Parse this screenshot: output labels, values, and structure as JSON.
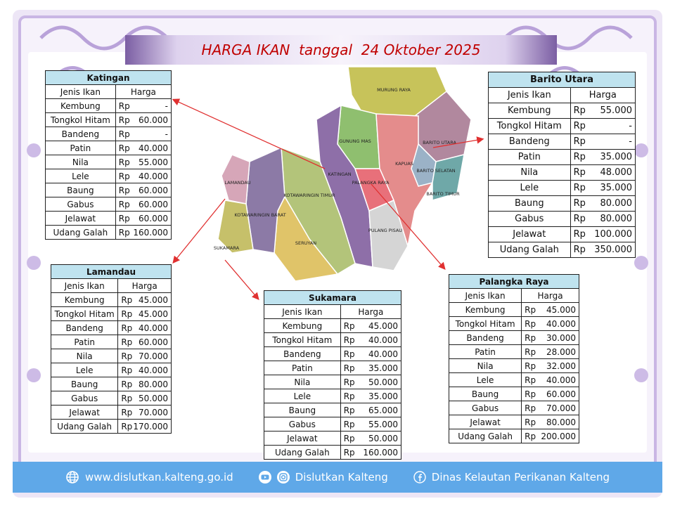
{
  "title": "HARGA IKAN  tanggal  24 Oktober 2025",
  "columns": {
    "fish": "Jenis Ikan",
    "price": "Harga"
  },
  "currency": "Rp",
  "colors": {
    "title": "#c00000",
    "region_header": "#bfe3ef",
    "footer": "#5fa8e8",
    "frame": "#c9b6e4",
    "arrow": "#e03030"
  },
  "map": {
    "labels": {
      "murung_raya": "MURUNG RAYA",
      "gunung_mas": "GUNUNG MAS",
      "barito_utara": "BARITO UTARA",
      "barito_selatan": "BARITO SELATAN",
      "barito_timur": "BARITO TIMUR",
      "kapuas": "KAPUAS",
      "katingan": "KATINGAN",
      "palangka_raya": "PALANGKA RAYA",
      "pulang_pisau": "PULANG PISAU",
      "kotawaringin_timur": "KOTAWARINGIN TIMUR",
      "kotawaringin_barat": "KOTAWARINGIN BARAT",
      "seruyan": "SERUYAN",
      "lamandau": "LAMANDAU",
      "sukamara": "SUKAMARA"
    }
  },
  "tables": {
    "katingan": {
      "region": "Katingan",
      "rows": [
        {
          "fish": "Kembung",
          "price": "-"
        },
        {
          "fish": "Tongkol Hitam",
          "price": "60.000"
        },
        {
          "fish": "Bandeng",
          "price": "-"
        },
        {
          "fish": "Patin",
          "price": "40.000"
        },
        {
          "fish": "Nila",
          "price": "55.000"
        },
        {
          "fish": "Lele",
          "price": "40.000"
        },
        {
          "fish": "Baung",
          "price": "60.000"
        },
        {
          "fish": "Gabus",
          "price": "60.000"
        },
        {
          "fish": "Jelawat",
          "price": "60.000"
        },
        {
          "fish": "Udang Galah",
          "price": "160.000"
        }
      ]
    },
    "barito_utara": {
      "region": "Barito Utara",
      "rows": [
        {
          "fish": "Kembung",
          "price": "55.000"
        },
        {
          "fish": "Tongkol Hitam",
          "price": "-"
        },
        {
          "fish": "Bandeng",
          "price": "-"
        },
        {
          "fish": "Patin",
          "price": "35.000"
        },
        {
          "fish": "Nila",
          "price": "48.000"
        },
        {
          "fish": "Lele",
          "price": "35.000"
        },
        {
          "fish": "Baung",
          "price": "80.000"
        },
        {
          "fish": "Gabus",
          "price": "80.000"
        },
        {
          "fish": "Jelawat",
          "price": "100.000"
        },
        {
          "fish": "Udang Galah",
          "price": "350.000"
        }
      ]
    },
    "lamandau": {
      "region": "Lamandau",
      "rows": [
        {
          "fish": "Kembung",
          "price": "45.000"
        },
        {
          "fish": "Tongkol Hitam",
          "price": "45.000"
        },
        {
          "fish": "Bandeng",
          "price": "40.000"
        },
        {
          "fish": "Patin",
          "price": "60.000"
        },
        {
          "fish": "Nila",
          "price": "70.000"
        },
        {
          "fish": "Lele",
          "price": "40.000"
        },
        {
          "fish": "Baung",
          "price": "80.000"
        },
        {
          "fish": "Gabus",
          "price": "50.000"
        },
        {
          "fish": "Jelawat",
          "price": "70.000"
        },
        {
          "fish": "Udang Galah",
          "price": "170.000"
        }
      ]
    },
    "sukamara": {
      "region": "Sukamara",
      "rows": [
        {
          "fish": "Kembung",
          "price": "45.000"
        },
        {
          "fish": "Tongkol Hitam",
          "price": "40.000"
        },
        {
          "fish": "Bandeng",
          "price": "40.000"
        },
        {
          "fish": "Patin",
          "price": "35.000"
        },
        {
          "fish": "Nila",
          "price": "50.000"
        },
        {
          "fish": "Lele",
          "price": "35.000"
        },
        {
          "fish": "Baung",
          "price": "65.000"
        },
        {
          "fish": "Gabus",
          "price": "55.000"
        },
        {
          "fish": "Jelawat",
          "price": "50.000"
        },
        {
          "fish": "Udang Galah",
          "price": "160.000"
        }
      ]
    },
    "palangka_raya": {
      "region": "Palangka Raya",
      "rows": [
        {
          "fish": "Kembung",
          "price": "45.000"
        },
        {
          "fish": "Tongkol Hitam",
          "price": "40.000"
        },
        {
          "fish": "Bandeng",
          "price": "30.000"
        },
        {
          "fish": "Patin",
          "price": "28.000"
        },
        {
          "fish": "Nila",
          "price": "32.000"
        },
        {
          "fish": "Lele",
          "price": "40.000"
        },
        {
          "fish": "Baung",
          "price": "60.000"
        },
        {
          "fish": "Gabus",
          "price": "70.000"
        },
        {
          "fish": "Jelawat",
          "price": "80.000"
        },
        {
          "fish": "Udang Galah",
          "price": "200.000"
        }
      ]
    }
  },
  "footer": {
    "website": "www.dislutkan.kalteng.go.id",
    "social": "Dislutkan Kalteng",
    "facebook": "Dinas Kelautan Perikanan Kalteng",
    "icons": [
      "globe-icon",
      "youtube-icon",
      "instagram-icon",
      "facebook-icon"
    ]
  }
}
